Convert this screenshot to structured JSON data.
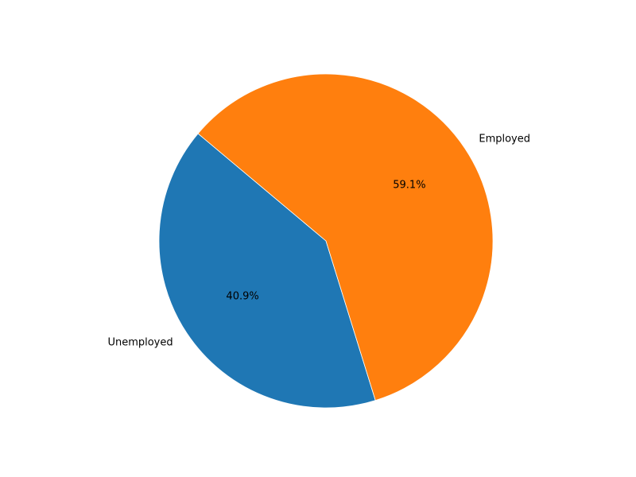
{
  "chart_data": {
    "type": "pie",
    "title": "",
    "slices": [
      {
        "label": "Unemployed",
        "value": 40.9,
        "pct_text": "40.9%",
        "color": "#1f77b4"
      },
      {
        "label": "Employed",
        "value": 59.1,
        "pct_text": "59.1%",
        "color": "#ff7f0e"
      }
    ],
    "start_angle_deg": 140,
    "direction": "counterclockwise",
    "legend": "none"
  }
}
